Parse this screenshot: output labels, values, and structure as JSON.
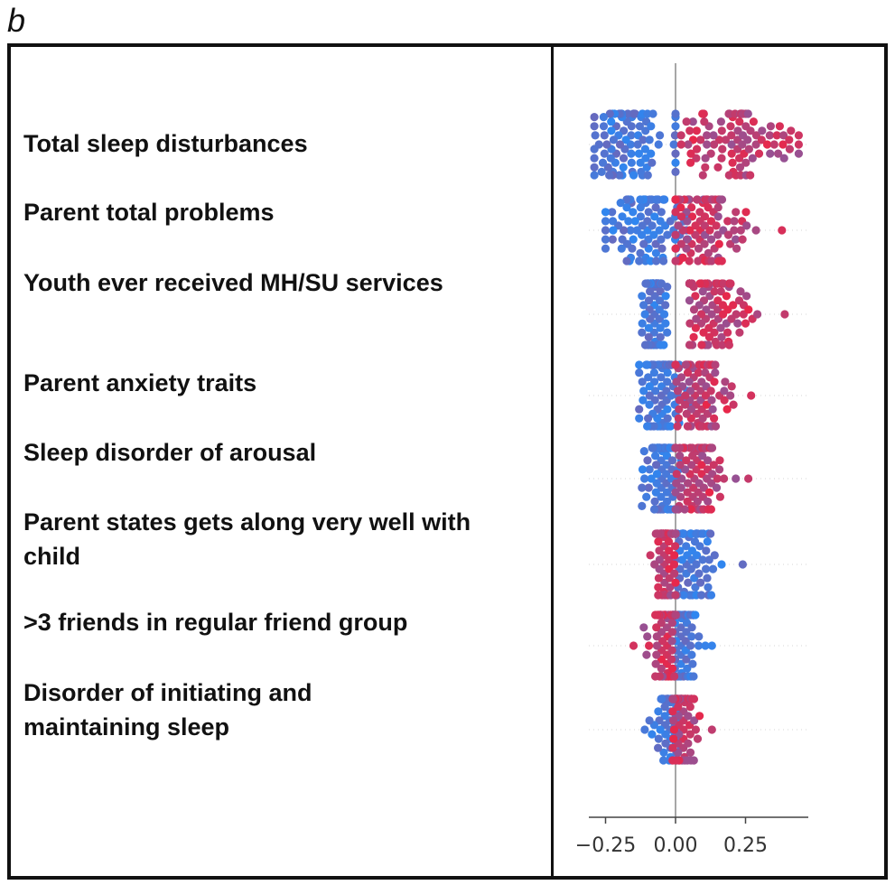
{
  "panel_letter": "b",
  "chart_data": {
    "type": "scatter",
    "subtype": "beeswarm",
    "features": [
      "Total sleep disturbances",
      "Parent total problems",
      "Youth ever received MH/SU services",
      "Parent anxiety traits",
      "Sleep disorder of arousal",
      "Parent states gets along very well with child",
      ">3 friends in regular friend group",
      "Disorder of initiating and maintaining sleep"
    ],
    "x_ticks": [
      -0.25,
      0.0,
      0.25
    ],
    "x_tick_labels": [
      "−0.25",
      "0.00",
      "0.25"
    ],
    "xlim": [
      -0.31,
      0.48
    ],
    "colors": {
      "low": "#2f86f0",
      "high": "#e8274a"
    },
    "rows": [
      {
        "feature": "Total sleep disturbances",
        "low_cluster": {
          "min": -0.29,
          "max": 0.0,
          "center": -0.16,
          "spread": 0.09
        },
        "high_cluster": {
          "min": 0.02,
          "max": 0.44,
          "center": 0.2,
          "spread": 0.1
        }
      },
      {
        "feature": "Parent total problems",
        "low_cluster": {
          "min": -0.25,
          "max": 0.05,
          "center": -0.1,
          "spread": 0.08
        },
        "high_cluster": {
          "min": 0.0,
          "max": 0.38,
          "center": 0.09,
          "spread": 0.07
        }
      },
      {
        "feature": "Youth ever received MH/SU services",
        "low_cluster": {
          "min": -0.12,
          "max": -0.03,
          "center": -0.075,
          "spread": 0.02
        },
        "high_cluster": {
          "min": 0.05,
          "max": 0.39,
          "center": 0.13,
          "spread": 0.08
        }
      },
      {
        "feature": "Parent anxiety traits",
        "low_cluster": {
          "min": -0.13,
          "max": 0.05,
          "center": -0.05,
          "spread": 0.04
        },
        "high_cluster": {
          "min": 0.0,
          "max": 0.27,
          "center": 0.07,
          "spread": 0.06
        }
      },
      {
        "feature": "Sleep disorder of arousal",
        "low_cluster": {
          "min": -0.12,
          "max": 0.02,
          "center": -0.05,
          "spread": 0.03
        },
        "high_cluster": {
          "min": 0.0,
          "max": 0.26,
          "center": 0.07,
          "spread": 0.05
        }
      },
      {
        "feature": "Parent states gets along very well with child",
        "low_cluster": {
          "min": 0.0,
          "max": 0.24,
          "center": 0.04,
          "spread": 0.05
        },
        "high_cluster": {
          "min": -0.09,
          "max": 0.0,
          "center": -0.04,
          "spread": 0.02
        }
      },
      {
        "feature": ">3 friends in regular friend group",
        "low_cluster": {
          "min": -0.01,
          "max": 0.13,
          "center": 0.02,
          "spread": 0.03
        },
        "high_cluster": {
          "min": -0.15,
          "max": 0.0,
          "center": -0.03,
          "spread": 0.03
        }
      },
      {
        "feature": "Disorder of initiating and maintaining sleep",
        "low_cluster": {
          "min": -0.11,
          "max": 0.02,
          "center": -0.02,
          "spread": 0.025
        },
        "high_cluster": {
          "min": -0.01,
          "max": 0.13,
          "center": 0.03,
          "spread": 0.025
        }
      }
    ],
    "grid": false,
    "legend": "none"
  }
}
